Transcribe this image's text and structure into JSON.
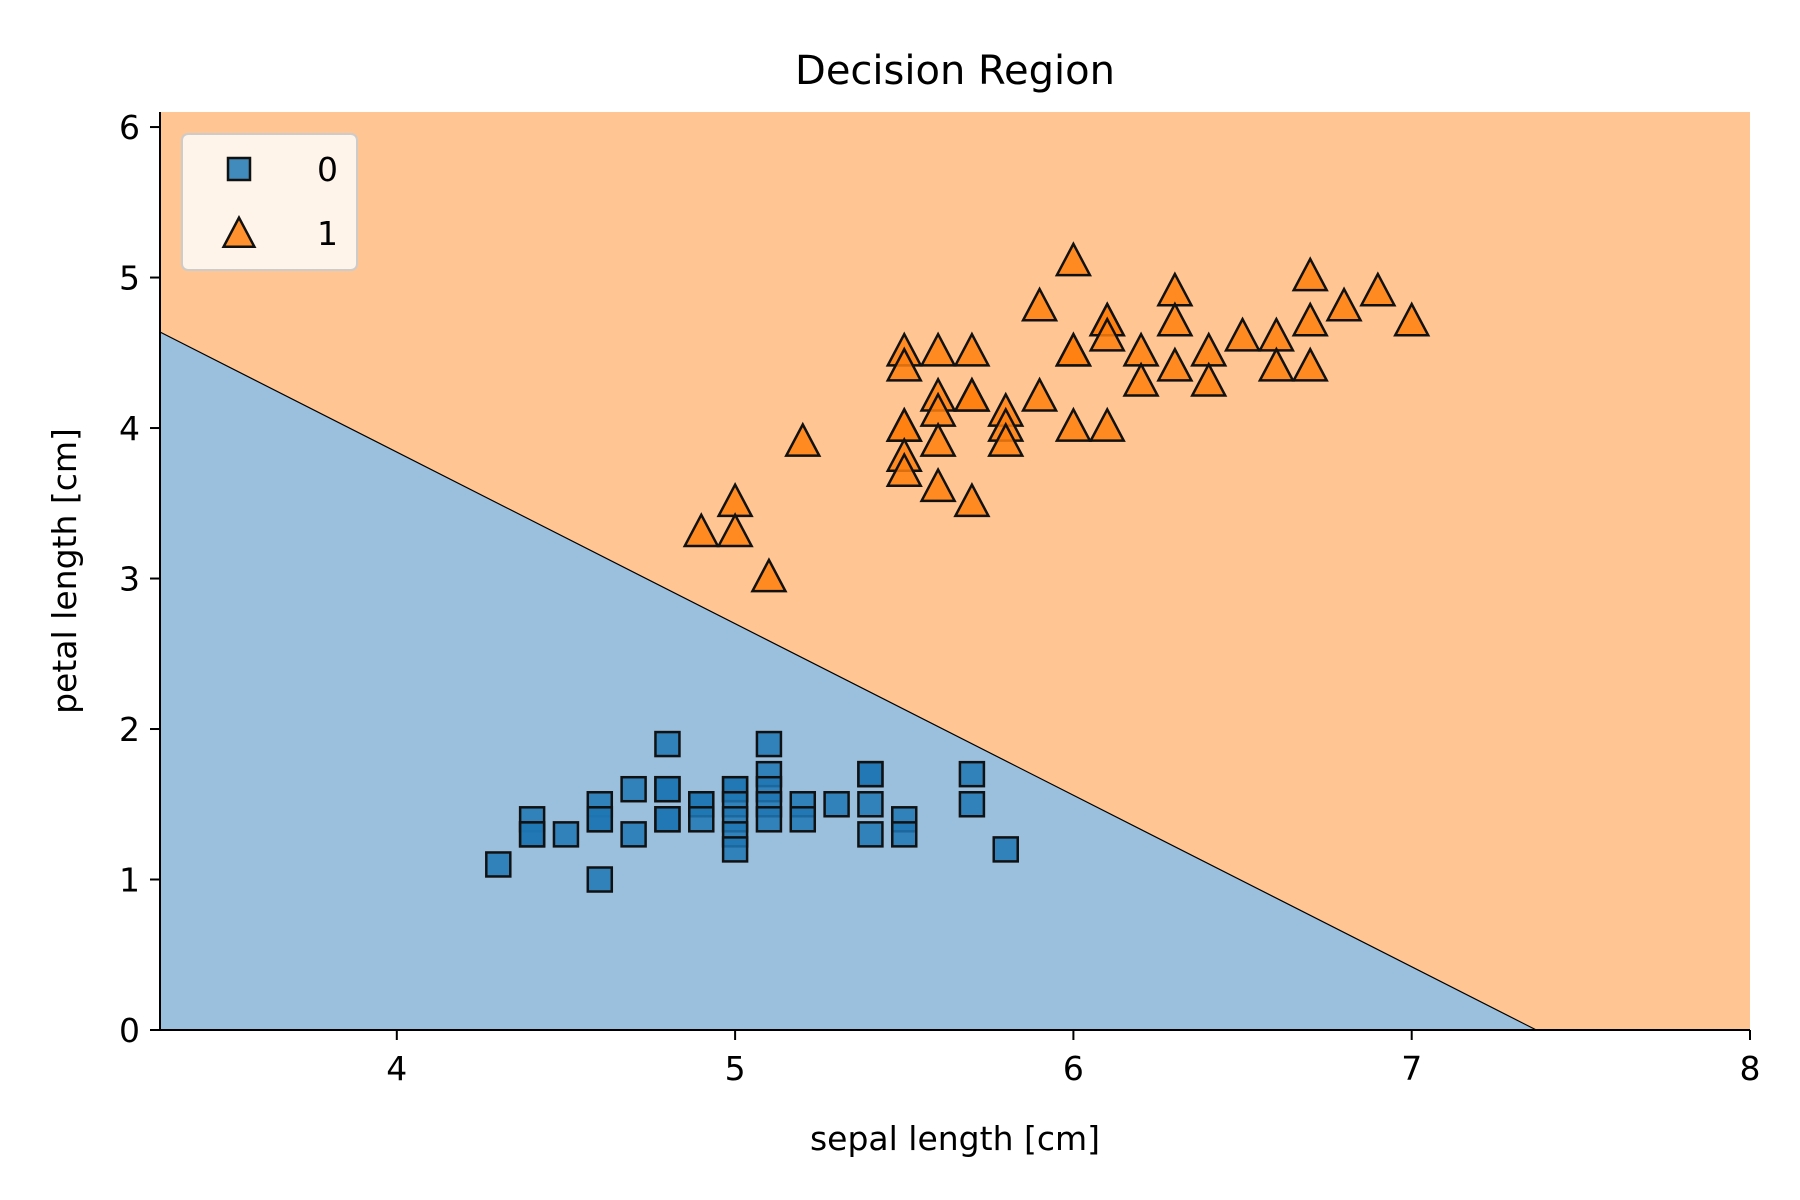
{
  "chart_data": {
    "type": "scatter",
    "title": "Decision Region",
    "xlabel": "sepal length [cm]",
    "ylabel": "petal length [cm]",
    "xlim": [
      3.3,
      8.0
    ],
    "ylim": [
      0,
      6.1
    ],
    "xticks": [
      "4",
      "5",
      "6",
      "7",
      "8"
    ],
    "yticks": [
      "0",
      "1",
      "2",
      "3",
      "4",
      "5",
      "6"
    ],
    "grid": false,
    "legend_position": "top-left",
    "decision_boundary": {
      "slope": -1.14,
      "intercept": 8.4
    },
    "regions": [
      {
        "class": "0",
        "color": "#9bc0de"
      },
      {
        "class": "1",
        "color": "#ffc592"
      }
    ],
    "series": [
      {
        "name": "0",
        "marker": "square",
        "color": "#1f77b4",
        "points": [
          [
            4.3,
            1.1
          ],
          [
            4.4,
            1.4
          ],
          [
            4.4,
            1.3
          ],
          [
            4.4,
            1.3
          ],
          [
            4.5,
            1.3
          ],
          [
            4.6,
            1.5
          ],
          [
            4.6,
            1.4
          ],
          [
            4.6,
            1.4
          ],
          [
            4.6,
            1.0
          ],
          [
            4.7,
            1.6
          ],
          [
            4.7,
            1.3
          ],
          [
            4.8,
            1.9
          ],
          [
            4.8,
            1.6
          ],
          [
            4.8,
            1.6
          ],
          [
            4.8,
            1.4
          ],
          [
            4.8,
            1.4
          ],
          [
            4.9,
            1.5
          ],
          [
            4.9,
            1.5
          ],
          [
            4.9,
            1.4
          ],
          [
            5.0,
            1.6
          ],
          [
            5.0,
            1.6
          ],
          [
            5.0,
            1.5
          ],
          [
            5.0,
            1.4
          ],
          [
            5.0,
            1.3
          ],
          [
            5.0,
            1.2
          ],
          [
            5.1,
            1.9
          ],
          [
            5.1,
            1.7
          ],
          [
            5.1,
            1.6
          ],
          [
            5.1,
            1.5
          ],
          [
            5.1,
            1.4
          ],
          [
            5.2,
            1.5
          ],
          [
            5.2,
            1.4
          ],
          [
            5.3,
            1.5
          ],
          [
            5.4,
            1.7
          ],
          [
            5.4,
            1.7
          ],
          [
            5.4,
            1.5
          ],
          [
            5.4,
            1.3
          ],
          [
            5.5,
            1.4
          ],
          [
            5.5,
            1.3
          ],
          [
            5.7,
            1.7
          ],
          [
            5.7,
            1.5
          ],
          [
            5.8,
            1.2
          ]
        ]
      },
      {
        "name": "1",
        "marker": "triangle",
        "color": "#ff7f0e",
        "points": [
          [
            4.9,
            3.3
          ],
          [
            5.0,
            3.5
          ],
          [
            5.0,
            3.3
          ],
          [
            5.1,
            3.0
          ],
          [
            5.2,
            3.9
          ],
          [
            5.5,
            4.5
          ],
          [
            5.5,
            4.4
          ],
          [
            5.5,
            4.0
          ],
          [
            5.5,
            4.0
          ],
          [
            5.5,
            3.8
          ],
          [
            5.5,
            3.7
          ],
          [
            5.6,
            4.5
          ],
          [
            5.6,
            4.2
          ],
          [
            5.6,
            4.1
          ],
          [
            5.6,
            3.9
          ],
          [
            5.6,
            3.6
          ],
          [
            5.7,
            4.5
          ],
          [
            5.7,
            4.2
          ],
          [
            5.7,
            4.2
          ],
          [
            5.7,
            3.5
          ],
          [
            5.8,
            4.1
          ],
          [
            5.8,
            4.0
          ],
          [
            5.8,
            3.9
          ],
          [
            5.9,
            4.8
          ],
          [
            5.9,
            4.2
          ],
          [
            6.0,
            5.1
          ],
          [
            6.0,
            4.5
          ],
          [
            6.0,
            4.5
          ],
          [
            6.0,
            4.0
          ],
          [
            6.1,
            4.7
          ],
          [
            6.1,
            4.7
          ],
          [
            6.1,
            4.6
          ],
          [
            6.1,
            4.0
          ],
          [
            6.2,
            4.5
          ],
          [
            6.2,
            4.3
          ],
          [
            6.3,
            4.9
          ],
          [
            6.3,
            4.7
          ],
          [
            6.3,
            4.4
          ],
          [
            6.4,
            4.5
          ],
          [
            6.4,
            4.3
          ],
          [
            6.5,
            4.6
          ],
          [
            6.6,
            4.6
          ],
          [
            6.6,
            4.4
          ],
          [
            6.7,
            5.0
          ],
          [
            6.7,
            4.7
          ],
          [
            6.7,
            4.4
          ],
          [
            6.8,
            4.8
          ],
          [
            6.9,
            4.9
          ],
          [
            7.0,
            4.7
          ]
        ]
      }
    ]
  }
}
